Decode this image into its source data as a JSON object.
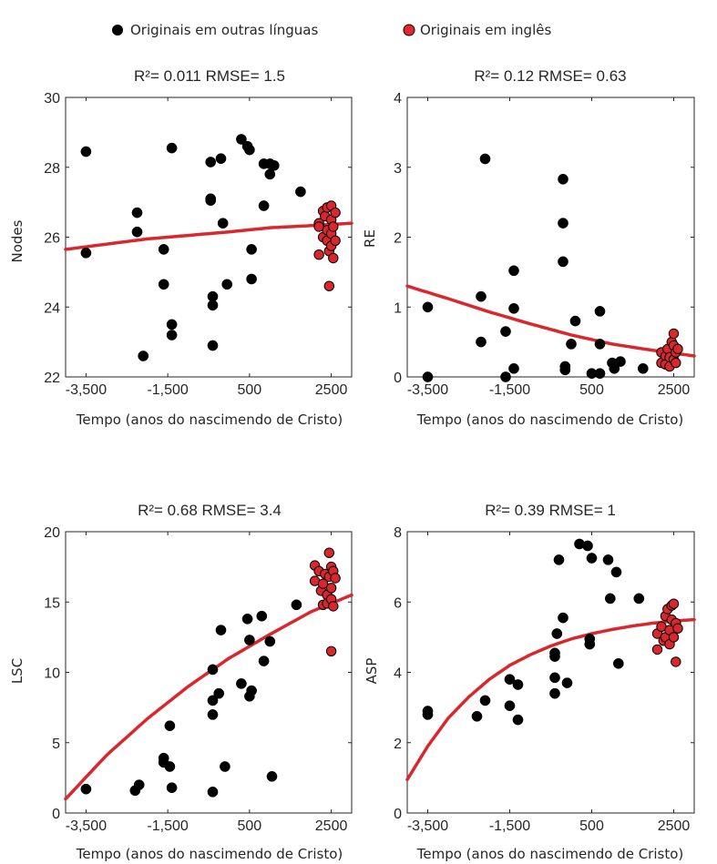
{
  "legend": {
    "items": [
      {
        "label": "Originais em outras línguas",
        "color": "#000000"
      },
      {
        "label": "Originais em inglês",
        "color": "#e0282e"
      }
    ]
  },
  "colors": {
    "other": "#000000",
    "english": "#d9272e",
    "fit": "#d9272e",
    "axis": "#262626"
  },
  "chart_data": [
    {
      "type": "scatter",
      "title": "R²= 0.011 RMSE= 1.5",
      "xlabel": "Tempo (anos do nascimendo de Cristo)",
      "ylabel": "Nodes",
      "xlim": [
        -4000,
        3000
      ],
      "ylim": [
        22,
        30
      ],
      "xticks": [
        -3500,
        -1500,
        500,
        2500
      ],
      "xticklabels": [
        "-3,500",
        "-1,500",
        "500",
        "2500"
      ],
      "yticks": [
        22,
        24,
        26,
        28,
        30
      ],
      "yticklabels": [
        "22",
        "24",
        "26",
        "28",
        "30"
      ],
      "series": [
        {
          "name": "Originais em outras línguas",
          "points": [
            [
              -3500,
              28.45
            ],
            [
              -3500,
              25.55
            ],
            [
              -2250,
              26.7
            ],
            [
              -2250,
              26.15
            ],
            [
              -2100,
              22.6
            ],
            [
              -1600,
              25.65
            ],
            [
              -1600,
              24.65
            ],
            [
              -1400,
              28.55
            ],
            [
              -1400,
              23.5
            ],
            [
              -1400,
              23.2
            ],
            [
              -450,
              28.15
            ],
            [
              -450,
              27.1
            ],
            [
              -450,
              27.05
            ],
            [
              -400,
              24.3
            ],
            [
              -400,
              24.05
            ],
            [
              -400,
              22.9
            ],
            [
              -200,
              28.25
            ],
            [
              -150,
              26.4
            ],
            [
              -50,
              24.65
            ],
            [
              300,
              28.8
            ],
            [
              450,
              28.6
            ],
            [
              500,
              28.5
            ],
            [
              550,
              25.65
            ],
            [
              550,
              24.8
            ],
            [
              850,
              26.9
            ],
            [
              850,
              28.1
            ],
            [
              1000,
              27.8
            ],
            [
              1000,
              28.1
            ],
            [
              1100,
              28.05
            ],
            [
              1750,
              27.3
            ]
          ],
          "trend": "flat"
        },
        {
          "name": "Originais em inglês",
          "points": [
            [
              2200,
              26.4
            ],
            [
              2200,
              26.3
            ],
            [
              2200,
              25.5
            ],
            [
              2300,
              26.75
            ],
            [
              2300,
              26.0
            ],
            [
              2350,
              26.6
            ],
            [
              2400,
              26.85
            ],
            [
              2400,
              26.2
            ],
            [
              2400,
              25.9
            ],
            [
              2450,
              25.6
            ],
            [
              2500,
              26.9
            ],
            [
              2500,
              26.5
            ],
            [
              2500,
              26.1
            ],
            [
              2500,
              25.75
            ],
            [
              2550,
              26.3
            ],
            [
              2550,
              25.4
            ],
            [
              2600,
              26.7
            ],
            [
              2600,
              25.9
            ],
            [
              2450,
              24.6
            ]
          ]
        }
      ],
      "fit": {
        "model": "a-b*exp(-c*x)",
        "y_at": [
          [
            -4000,
            25.65
          ],
          [
            -3000,
            25.8
          ],
          [
            -2000,
            25.95
          ],
          [
            -1000,
            26.05
          ],
          [
            0,
            26.15
          ],
          [
            1000,
            26.27
          ],
          [
            2000,
            26.33
          ],
          [
            3000,
            26.4
          ]
        ]
      }
    },
    {
      "type": "scatter",
      "title": "R²= 0.12 RMSE= 0.63",
      "xlabel": "Tempo (anos do nascimendo de Cristo)",
      "ylabel": "RE",
      "xlim": [
        -4000,
        3000
      ],
      "ylim": [
        0,
        4
      ],
      "xticks": [
        -3500,
        -1500,
        500,
        2500
      ],
      "xticklabels": [
        "-3,500",
        "-1,500",
        "500",
        "2500"
      ],
      "yticks": [
        0,
        1,
        2,
        3,
        4
      ],
      "yticklabels": [
        "0",
        "1",
        "2",
        "3",
        "4"
      ],
      "series": [
        {
          "name": "Originais em outras línguas",
          "points": [
            [
              -3500,
              1.0
            ],
            [
              -3500,
              0.0
            ],
            [
              -2100,
              3.12
            ],
            [
              -2200,
              1.15
            ],
            [
              -2200,
              0.5
            ],
            [
              -1600,
              0.65
            ],
            [
              -1600,
              0.0
            ],
            [
              -1400,
              1.52
            ],
            [
              -1400,
              0.98
            ],
            [
              -1400,
              0.12
            ],
            [
              -200,
              2.83
            ],
            [
              -200,
              2.2
            ],
            [
              -200,
              1.65
            ],
            [
              -150,
              0.15
            ],
            [
              -150,
              0.1
            ],
            [
              100,
              0.8
            ],
            [
              0,
              0.47
            ],
            [
              700,
              0.94
            ],
            [
              700,
              0.47
            ],
            [
              500,
              0.05
            ],
            [
              700,
              0.05
            ],
            [
              1000,
              0.2
            ],
            [
              1050,
              0.12
            ],
            [
              1200,
              0.22
            ],
            [
              1750,
              0.12
            ]
          ]
        },
        {
          "name": "Originais em inglês",
          "points": [
            [
              2200,
              0.35
            ],
            [
              2200,
              0.2
            ],
            [
              2300,
              0.3
            ],
            [
              2300,
              0.18
            ],
            [
              2350,
              0.4
            ],
            [
              2400,
              0.28
            ],
            [
              2400,
              0.15
            ],
            [
              2450,
              0.5
            ],
            [
              2500,
              0.62
            ],
            [
              2500,
              0.45
            ],
            [
              2500,
              0.25
            ],
            [
              2550,
              0.35
            ],
            [
              2550,
              0.2
            ],
            [
              2600,
              0.4
            ]
          ]
        }
      ],
      "fit": {
        "model": "a+b*exp(-c*x)",
        "y_at": [
          [
            -4000,
            1.3
          ],
          [
            -3000,
            1.12
          ],
          [
            -2000,
            0.93
          ],
          [
            -1000,
            0.76
          ],
          [
            0,
            0.6
          ],
          [
            1000,
            0.47
          ],
          [
            2000,
            0.38
          ],
          [
            3000,
            0.3
          ]
        ]
      }
    },
    {
      "type": "scatter",
      "title": "R²= 0.68 RMSE= 3.4",
      "xlabel": "Tempo (anos do nascimendo de Cristo)",
      "ylabel": "LSC",
      "xlim": [
        -4000,
        3000
      ],
      "ylim": [
        0,
        20
      ],
      "xticks": [
        -3500,
        -1500,
        500,
        2500
      ],
      "xticklabels": [
        "-3,500",
        "-1,500",
        "500",
        "2500"
      ],
      "yticks": [
        0,
        5,
        10,
        15,
        20
      ],
      "yticklabels": [
        "0",
        "5",
        "10",
        "15",
        "20"
      ],
      "series": [
        {
          "name": "Originais em outras línguas",
          "points": [
            [
              -3500,
              1.7
            ],
            [
              -2300,
              1.6
            ],
            [
              -2200,
              2.0
            ],
            [
              -1600,
              3.9
            ],
            [
              -1600,
              3.6
            ],
            [
              -1450,
              6.2
            ],
            [
              -1450,
              3.3
            ],
            [
              -1400,
              1.8
            ],
            [
              -400,
              10.2
            ],
            [
              -400,
              8.0
            ],
            [
              -400,
              7.0
            ],
            [
              -400,
              1.5
            ],
            [
              -250,
              8.5
            ],
            [
              -200,
              13.0
            ],
            [
              -100,
              3.3
            ],
            [
              300,
              9.2
            ],
            [
              450,
              13.8
            ],
            [
              500,
              12.3
            ],
            [
              500,
              8.3
            ],
            [
              550,
              8.7
            ],
            [
              800,
              14.0
            ],
            [
              850,
              10.8
            ],
            [
              1000,
              12.2
            ],
            [
              1050,
              2.6
            ],
            [
              1650,
              14.8
            ]
          ]
        },
        {
          "name": "Originais em inglês",
          "points": [
            [
              2100,
              17.6
            ],
            [
              2100,
              16.5
            ],
            [
              2200,
              17.2
            ],
            [
              2250,
              15.8
            ],
            [
              2300,
              16.3
            ],
            [
              2300,
              14.8
            ],
            [
              2350,
              17.0
            ],
            [
              2400,
              15.5
            ],
            [
              2400,
              14.9
            ],
            [
              2450,
              16.8
            ],
            [
              2450,
              18.5
            ],
            [
              2500,
              17.5
            ],
            [
              2500,
              16.0
            ],
            [
              2500,
              15.2
            ],
            [
              2550,
              17.2
            ],
            [
              2550,
              14.7
            ],
            [
              2600,
              16.7
            ],
            [
              2500,
              11.5
            ]
          ]
        }
      ],
      "fit": {
        "model": "a-b*exp(-c*x)",
        "y_at": [
          [
            -4000,
            1.0
          ],
          [
            -3000,
            4.1
          ],
          [
            -2000,
            6.7
          ],
          [
            -1000,
            9.0
          ],
          [
            0,
            11.0
          ],
          [
            1000,
            12.7
          ],
          [
            2000,
            14.3
          ],
          [
            3000,
            15.5
          ]
        ]
      }
    },
    {
      "type": "scatter",
      "title": "R²= 0.39 RMSE= 1",
      "xlabel": "Tempo (anos do nascimendo de Cristo)",
      "ylabel": "ASP",
      "xlim": [
        -4000,
        3000
      ],
      "ylim": [
        0,
        8
      ],
      "xticks": [
        -3500,
        -1500,
        500,
        2500
      ],
      "xticklabels": [
        "-3,500",
        "-1,500",
        "500",
        "2500"
      ],
      "yticks": [
        0,
        2,
        4,
        6,
        8
      ],
      "yticklabels": [
        "0",
        "2",
        "4",
        "6",
        "8"
      ],
      "series": [
        {
          "name": "Originais em outras línguas",
          "points": [
            [
              -3500,
              2.9
            ],
            [
              -3500,
              2.8
            ],
            [
              -2300,
              2.75
            ],
            [
              -2100,
              3.2
            ],
            [
              -1500,
              3.8
            ],
            [
              -1500,
              3.05
            ],
            [
              -1300,
              3.65
            ],
            [
              -1300,
              2.65
            ],
            [
              -400,
              4.55
            ],
            [
              -400,
              4.45
            ],
            [
              -350,
              5.1
            ],
            [
              -400,
              3.85
            ],
            [
              -400,
              3.4
            ],
            [
              -300,
              7.2
            ],
            [
              -200,
              5.55
            ],
            [
              -100,
              3.7
            ],
            [
              200,
              7.65
            ],
            [
              400,
              7.6
            ],
            [
              500,
              7.25
            ],
            [
              450,
              4.8
            ],
            [
              450,
              4.95
            ],
            [
              900,
              7.2
            ],
            [
              950,
              6.1
            ],
            [
              1100,
              6.85
            ],
            [
              1150,
              4.25
            ],
            [
              1650,
              6.1
            ]
          ]
        },
        {
          "name": "Originais em inglês",
          "points": [
            [
              2100,
              5.1
            ],
            [
              2100,
              4.65
            ],
            [
              2200,
              5.3
            ],
            [
              2250,
              4.9
            ],
            [
              2300,
              5.6
            ],
            [
              2300,
              5.0
            ],
            [
              2350,
              5.8
            ],
            [
              2400,
              5.2
            ],
            [
              2400,
              4.8
            ],
            [
              2450,
              5.9
            ],
            [
              2450,
              5.5
            ],
            [
              2500,
              5.95
            ],
            [
              2500,
              5.0
            ],
            [
              2550,
              5.4
            ],
            [
              2550,
              4.3
            ],
            [
              2600,
              5.25
            ]
          ]
        }
      ],
      "fit": {
        "model": "a-b*exp(-c*x)",
        "y_at": [
          [
            -4000,
            0.95
          ],
          [
            -3500,
            1.9
          ],
          [
            -3000,
            2.7
          ],
          [
            -2500,
            3.3
          ],
          [
            -2000,
            3.8
          ],
          [
            -1500,
            4.2
          ],
          [
            -1000,
            4.5
          ],
          [
            -500,
            4.75
          ],
          [
            0,
            4.95
          ],
          [
            500,
            5.1
          ],
          [
            1000,
            5.22
          ],
          [
            1500,
            5.32
          ],
          [
            2000,
            5.4
          ],
          [
            2500,
            5.46
          ],
          [
            3000,
            5.5
          ]
        ]
      }
    }
  ]
}
